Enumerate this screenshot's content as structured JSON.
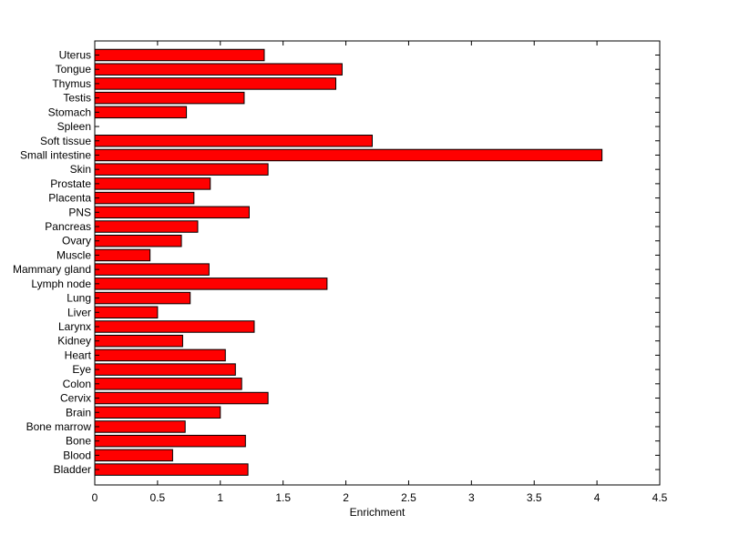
{
  "chart_data": {
    "type": "bar",
    "orientation": "horizontal",
    "title": "",
    "xlabel": "Enrichment",
    "ylabel": "",
    "xlim": [
      0,
      4.5
    ],
    "xticks": [
      "0",
      "0.5",
      "1",
      "1.5",
      "2",
      "2.5",
      "3",
      "3.5",
      "4",
      "4.5"
    ],
    "grid": false,
    "bar_color": "#ff0000",
    "bar_edge_color": "#000000",
    "categories": [
      "Uterus",
      "Tongue",
      "Thymus",
      "Testis",
      "Stomach",
      "Spleen",
      "Soft tissue",
      "Small intestine",
      "Skin",
      "Prostate",
      "Placenta",
      "PNS",
      "Pancreas",
      "Ovary",
      "Muscle",
      "Mammary gland",
      "Lymph node",
      "Lung",
      "Liver",
      "Larynx",
      "Kidney",
      "Heart",
      "Eye",
      "Colon",
      "Cervix",
      "Brain",
      "Bone marrow",
      "Bone",
      "Blood",
      "Bladder"
    ],
    "values": [
      1.35,
      1.97,
      1.92,
      1.19,
      0.73,
      0,
      2.21,
      4.04,
      1.38,
      0.92,
      0.79,
      1.23,
      0.82,
      0.69,
      0.44,
      0.91,
      1.85,
      0.76,
      0.5,
      1.27,
      0.7,
      1.04,
      1.12,
      1.17,
      1.38,
      1.0,
      0.72,
      1.2,
      0.62,
      1.22
    ]
  }
}
